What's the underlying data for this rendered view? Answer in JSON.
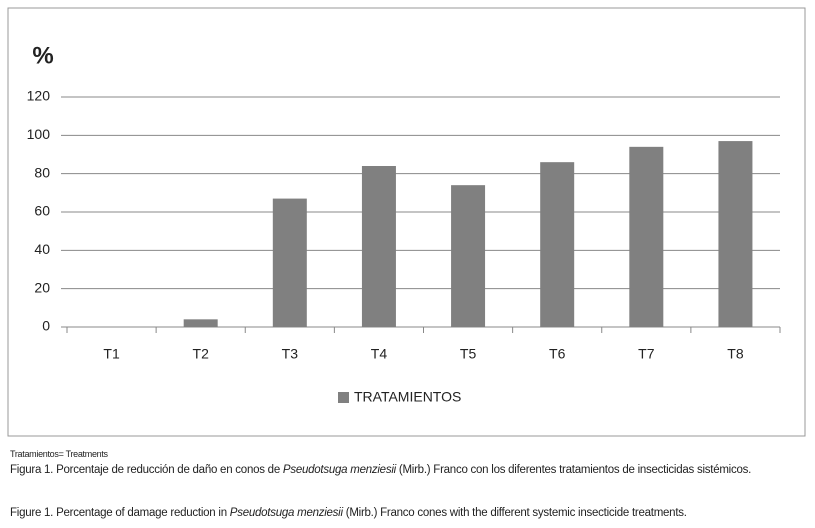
{
  "chart_data": {
    "type": "bar",
    "y_label": "%",
    "categories": [
      "T1",
      "T2",
      "T3",
      "T4",
      "T5",
      "T6",
      "T7",
      "T8"
    ],
    "series": [
      {
        "name": "TRATAMIENTOS",
        "color": "#808080",
        "values": [
          0,
          4,
          67,
          84,
          74,
          86,
          94,
          97
        ]
      }
    ],
    "ylim": [
      0,
      120
    ],
    "yticks": [
      0,
      20,
      40,
      60,
      80,
      100,
      120
    ],
    "grid": true,
    "legend": "bottom"
  },
  "caption": {
    "note": "Tratamientos= Treatments",
    "spanish": {
      "before": "Figura 1. Porcentaje de reducción de daño en conos de ",
      "italic": "Pseudotsuga menziesii",
      "after": " (Mirb.) Franco con los diferentes tratamientos de insecticidas sistémicos."
    },
    "english": {
      "before": "Figure 1. Percentage of damage reduction in ",
      "italic": "Pseudotsuga menziesii",
      "after": " (Mirb.) Franco cones with the different systemic insecticide treatments."
    }
  }
}
